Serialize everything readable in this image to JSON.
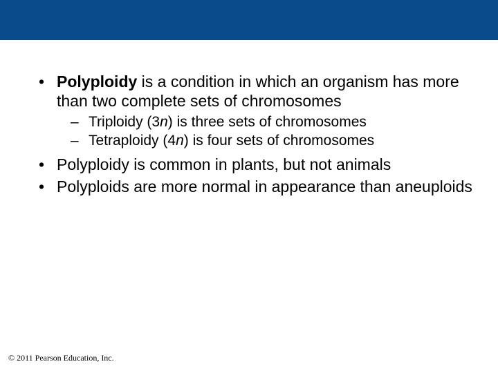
{
  "header": {
    "bar_color": "#0a4b8c"
  },
  "bullets": {
    "b1": {
      "bold_term": "Polyploidy",
      "rest": " is a condition in which an organism has more than two complete sets of chromosomes",
      "sub1_prefix": "Triploidy (3",
      "sub1_italic": "n",
      "sub1_suffix": ") is three sets of chromosomes",
      "sub2_prefix": "Tetraploidy (4",
      "sub2_italic": "n",
      "sub2_suffix": ") is four sets of chromosomes"
    },
    "b2": "Polyploidy is common in plants, but not animals",
    "b3": "Polyploids are more normal in appearance than aneuploids"
  },
  "copyright": "© 2011 Pearson Education, Inc."
}
